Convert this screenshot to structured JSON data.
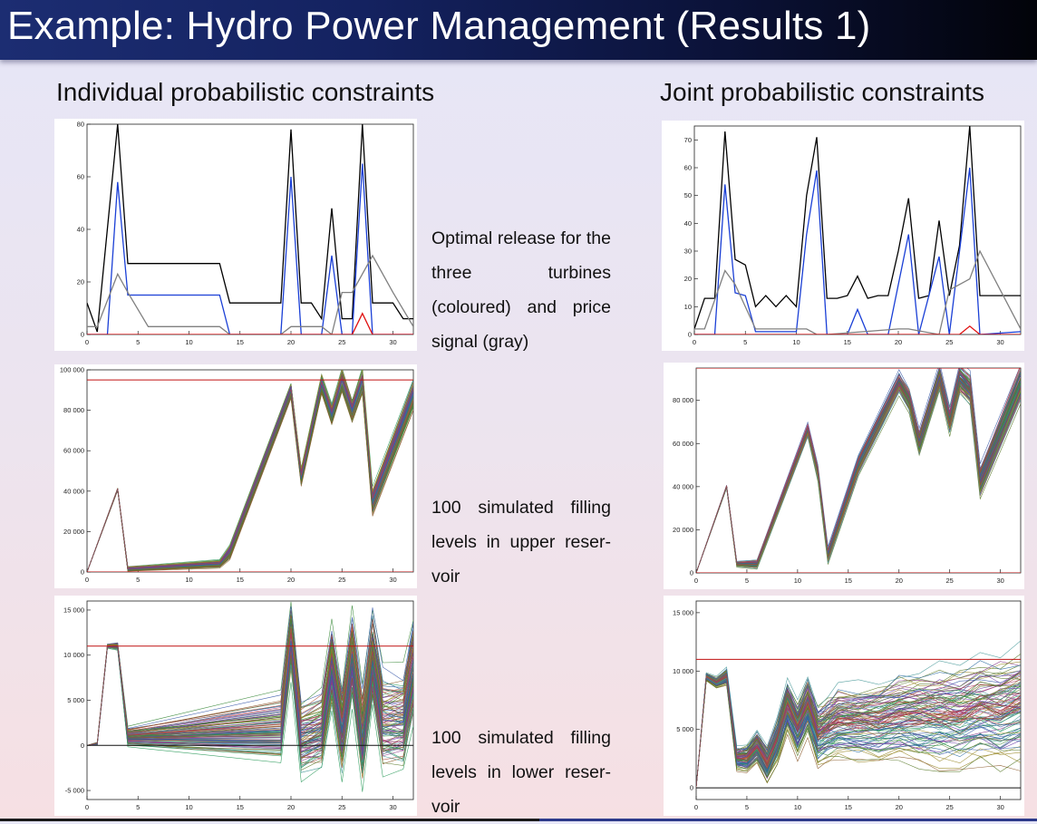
{
  "slide": {
    "title": "Example: Hydro Power Management (Results 1)",
    "heading_left": "Individual probabilistic constraints",
    "heading_right": "Joint probabilistic constraints",
    "desc_1": "Optimal release for the three turbines (coloured) and price signal (gray)",
    "desc_2": "100 simulated filling levels in upper reser-voir",
    "desc_3": "100 simulated filling levels in lower reser-voir"
  },
  "colors": {
    "accent": "#1c2d72",
    "turbine_black": "#000000",
    "turbine_blue": "#1a3fd6",
    "turbine_red": "#e01010",
    "price_gray": "#808080",
    "bound_red": "#c01010"
  },
  "chart_data": [
    {
      "id": "left-release",
      "type": "line",
      "xlim": [
        0,
        32
      ],
      "ylim": [
        0,
        80
      ],
      "xticks": [
        0,
        5,
        10,
        15,
        20,
        25,
        30
      ],
      "yticks": [
        0,
        20,
        40,
        60,
        80
      ],
      "series": [
        {
          "color": "#000000",
          "x": [
            0,
            1,
            3,
            4,
            5,
            6,
            7,
            13,
            14,
            19,
            20,
            21,
            22,
            23,
            24,
            25,
            26,
            27,
            28,
            29,
            30,
            31,
            32
          ],
          "y": [
            12,
            1,
            80,
            27,
            27,
            27,
            27,
            27,
            12,
            12,
            78,
            12,
            12,
            6,
            48,
            6,
            6,
            80,
            12,
            12,
            12,
            6,
            6
          ]
        },
        {
          "color": "#1a3fd6",
          "x": [
            0,
            2,
            3,
            4,
            13,
            14,
            19,
            20,
            21,
            23,
            24,
            25,
            26,
            27,
            28,
            32
          ],
          "y": [
            0,
            0,
            58,
            15,
            15,
            0,
            0,
            60,
            0,
            0,
            30,
            0,
            0,
            65,
            0,
            0
          ]
        },
        {
          "color": "#808080",
          "x": [
            0,
            1,
            3,
            4,
            6,
            13,
            14,
            19,
            20,
            23,
            24,
            25,
            26,
            28,
            30,
            32
          ],
          "y": [
            3,
            3,
            23,
            16,
            3,
            3,
            0,
            0,
            3,
            3,
            0,
            16,
            16,
            30,
            16,
            3
          ]
        },
        {
          "color": "#e01010",
          "x": [
            0,
            26,
            27,
            28,
            32
          ],
          "y": [
            0,
            0,
            8,
            0,
            0
          ]
        }
      ]
    },
    {
      "id": "left-upper-reservoir",
      "type": "line",
      "xlim": [
        0,
        32
      ],
      "ylim": [
        0,
        100000
      ],
      "xticks": [
        0,
        5,
        10,
        15,
        20,
        25,
        30
      ],
      "yticks": [
        0,
        20000,
        40000,
        60000,
        80000,
        100000
      ],
      "bounds": [
        0,
        95000
      ],
      "band": {
        "x": [
          0,
          3,
          4,
          13,
          14,
          20,
          21,
          23,
          24,
          25,
          26,
          27,
          28,
          32
        ],
        "y": [
          0,
          41000,
          1500,
          4000,
          10000,
          90000,
          47000,
          93000,
          78000,
          95000,
          80000,
          95000,
          35000,
          88000
        ],
        "spread": [
          0,
          800,
          1600,
          3000,
          5000,
          6000,
          6500,
          7000,
          7500,
          8000,
          8500,
          9000,
          10000,
          11000
        ]
      }
    },
    {
      "id": "left-lower-reservoir",
      "type": "line",
      "xlim": [
        0,
        32
      ],
      "ylim": [
        -6000,
        16000
      ],
      "xticks": [
        0,
        5,
        10,
        15,
        20,
        25,
        30
      ],
      "yticks": [
        -5000,
        0,
        5000,
        10000,
        15000
      ],
      "bounds": [
        0,
        11000
      ],
      "band": {
        "x": [
          0,
          1,
          2,
          3,
          4,
          19,
          20,
          21,
          23,
          24,
          25,
          26,
          27,
          28,
          29,
          31,
          32
        ],
        "y": [
          0,
          200,
          11000,
          11000,
          1000,
          2000,
          12000,
          1000,
          2000,
          9000,
          2000,
          10000,
          1000,
          10000,
          3000,
          3000,
          9000
        ],
        "spread": [
          0,
          200,
          300,
          500,
          1500,
          5000,
          5500,
          5500,
          6000,
          6000,
          6500,
          6500,
          7000,
          7000,
          7500,
          7500,
          8000
        ]
      }
    },
    {
      "id": "right-release",
      "type": "line",
      "xlim": [
        0,
        32
      ],
      "ylim": [
        0,
        75
      ],
      "xticks": [
        0,
        5,
        10,
        15,
        20,
        25,
        30
      ],
      "yticks": [
        0,
        10,
        20,
        30,
        40,
        50,
        60,
        70
      ],
      "series": [
        {
          "color": "#000000",
          "x": [
            0,
            1,
            2,
            3,
            4,
            5,
            6,
            7,
            8,
            9,
            10,
            11,
            12,
            13,
            14,
            15,
            16,
            17,
            18,
            19,
            20,
            21,
            22,
            23,
            24,
            25,
            26,
            27,
            28,
            29,
            30,
            31,
            32
          ],
          "y": [
            2,
            13,
            13,
            73,
            27,
            25,
            10,
            14,
            10,
            14,
            10,
            50,
            71,
            13,
            13,
            14,
            21,
            13,
            14,
            14,
            30,
            49,
            13,
            14,
            41,
            14,
            32,
            75,
            14,
            14,
            14,
            14,
            14
          ]
        },
        {
          "color": "#1a3fd6",
          "x": [
            0,
            2,
            3,
            4,
            5,
            6,
            10,
            11,
            12,
            13,
            15,
            16,
            17,
            19,
            21,
            22,
            24,
            25,
            27,
            28,
            32
          ],
          "y": [
            0,
            0,
            54,
            15,
            14,
            1,
            1,
            36,
            59,
            0,
            0,
            9,
            0,
            0,
            36,
            0,
            28,
            0,
            60,
            0,
            1
          ]
        },
        {
          "color": "#808080",
          "x": [
            0,
            1,
            3,
            4,
            6,
            11,
            12,
            13,
            20,
            21,
            24,
            25,
            27,
            28,
            30,
            32
          ],
          "y": [
            2,
            2,
            23,
            18,
            2,
            2,
            0,
            0,
            2,
            2,
            0,
            16,
            20,
            30,
            16,
            2
          ]
        },
        {
          "color": "#e01010",
          "x": [
            0,
            26,
            27,
            28,
            32
          ],
          "y": [
            0,
            0,
            3,
            0,
            0
          ]
        }
      ]
    },
    {
      "id": "right-upper-reservoir",
      "type": "line",
      "xlim": [
        0,
        32
      ],
      "ylim": [
        0,
        95000
      ],
      "xticks": [
        0,
        5,
        10,
        15,
        20,
        25,
        30
      ],
      "yticks": [
        0,
        20000,
        40000,
        60000,
        80000
      ],
      "bounds": [
        0,
        95000
      ],
      "band": {
        "x": [
          0,
          3,
          4,
          6,
          11,
          12,
          13,
          16,
          20,
          21,
          22,
          24,
          25,
          26,
          27,
          28,
          32
        ],
        "y": [
          0,
          40000,
          4000,
          4000,
          66000,
          46000,
          8000,
          50000,
          88000,
          80000,
          60000,
          90000,
          70000,
          90000,
          85000,
          42000,
          88000
        ],
        "spread": [
          0,
          800,
          1500,
          2500,
          4000,
          4500,
          5000,
          6000,
          6500,
          7000,
          7500,
          8000,
          8500,
          9000,
          9500,
          10000,
          11000
        ]
      }
    },
    {
      "id": "right-lower-reservoir",
      "type": "line",
      "xlim": [
        0,
        32
      ],
      "ylim": [
        -1000,
        16000
      ],
      "xticks": [
        0,
        5,
        10,
        15,
        20,
        25,
        30
      ],
      "yticks": [
        0,
        5000,
        10000,
        15000
      ],
      "bounds": [
        0,
        11000
      ],
      "band": {
        "x": [
          0,
          1,
          2,
          3,
          4,
          5,
          6,
          7,
          8,
          9,
          10,
          11,
          12,
          13,
          14,
          16,
          18,
          20,
          22,
          24,
          26,
          28,
          30,
          32
        ],
        "y": [
          0,
          9500,
          9000,
          9500,
          2500,
          2500,
          3500,
          2000,
          4000,
          7000,
          5000,
          7000,
          4500,
          5000,
          5500,
          5500,
          5500,
          6000,
          6000,
          6000,
          6000,
          6500,
          6500,
          7000
        ],
        "spread": [
          0,
          400,
          600,
          900,
          1200,
          1500,
          1800,
          2000,
          2400,
          2800,
          3000,
          3200,
          3400,
          3600,
          3800,
          4100,
          4400,
          4700,
          5000,
          5300,
          5500,
          5700,
          5900,
          6100
        ]
      }
    }
  ]
}
